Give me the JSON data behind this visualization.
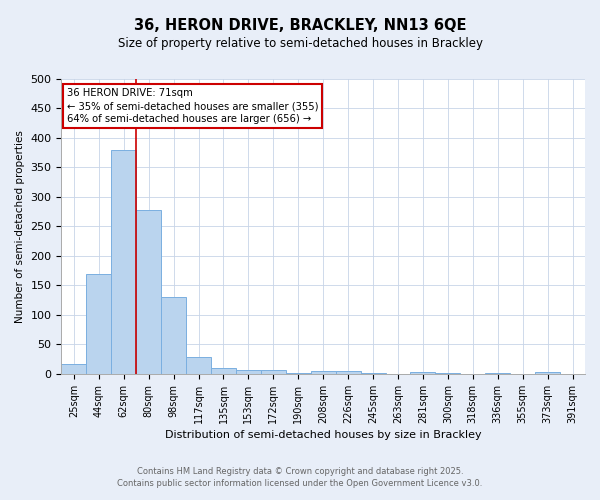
{
  "title": "36, HERON DRIVE, BRACKLEY, NN13 6QE",
  "subtitle": "Size of property relative to semi-detached houses in Brackley",
  "xlabel": "Distribution of semi-detached houses by size in Brackley",
  "ylabel": "Number of semi-detached properties",
  "categories": [
    "25sqm",
    "44sqm",
    "62sqm",
    "80sqm",
    "98sqm",
    "117sqm",
    "135sqm",
    "153sqm",
    "172sqm",
    "190sqm",
    "208sqm",
    "226sqm",
    "245sqm",
    "263sqm",
    "281sqm",
    "300sqm",
    "318sqm",
    "336sqm",
    "355sqm",
    "373sqm",
    "391sqm"
  ],
  "values": [
    17,
    170,
    380,
    278,
    130,
    28,
    10,
    6,
    6,
    1,
    5,
    5,
    1,
    0,
    3,
    2,
    0,
    1,
    0,
    3,
    0
  ],
  "bar_color": "#bad4ee",
  "bar_edgecolor": "#7aafe0",
  "vline_x": 2.5,
  "vline_color": "#cc0000",
  "annotation_title": "36 HERON DRIVE: 71sqm",
  "annotation_line1": "← 35% of semi-detached houses are smaller (355)",
  "annotation_line2": "64% of semi-detached houses are larger (656) →",
  "annotation_box_facecolor": "#ffffff",
  "annotation_box_edgecolor": "#cc0000",
  "ylim": [
    0,
    500
  ],
  "yticks": [
    0,
    50,
    100,
    150,
    200,
    250,
    300,
    350,
    400,
    450,
    500
  ],
  "footer_line1": "Contains HM Land Registry data © Crown copyright and database right 2025.",
  "footer_line2": "Contains public sector information licensed under the Open Government Licence v3.0.",
  "bg_color": "#e8eef8",
  "plot_bg_color": "#ffffff",
  "grid_color": "#c8d4e8"
}
